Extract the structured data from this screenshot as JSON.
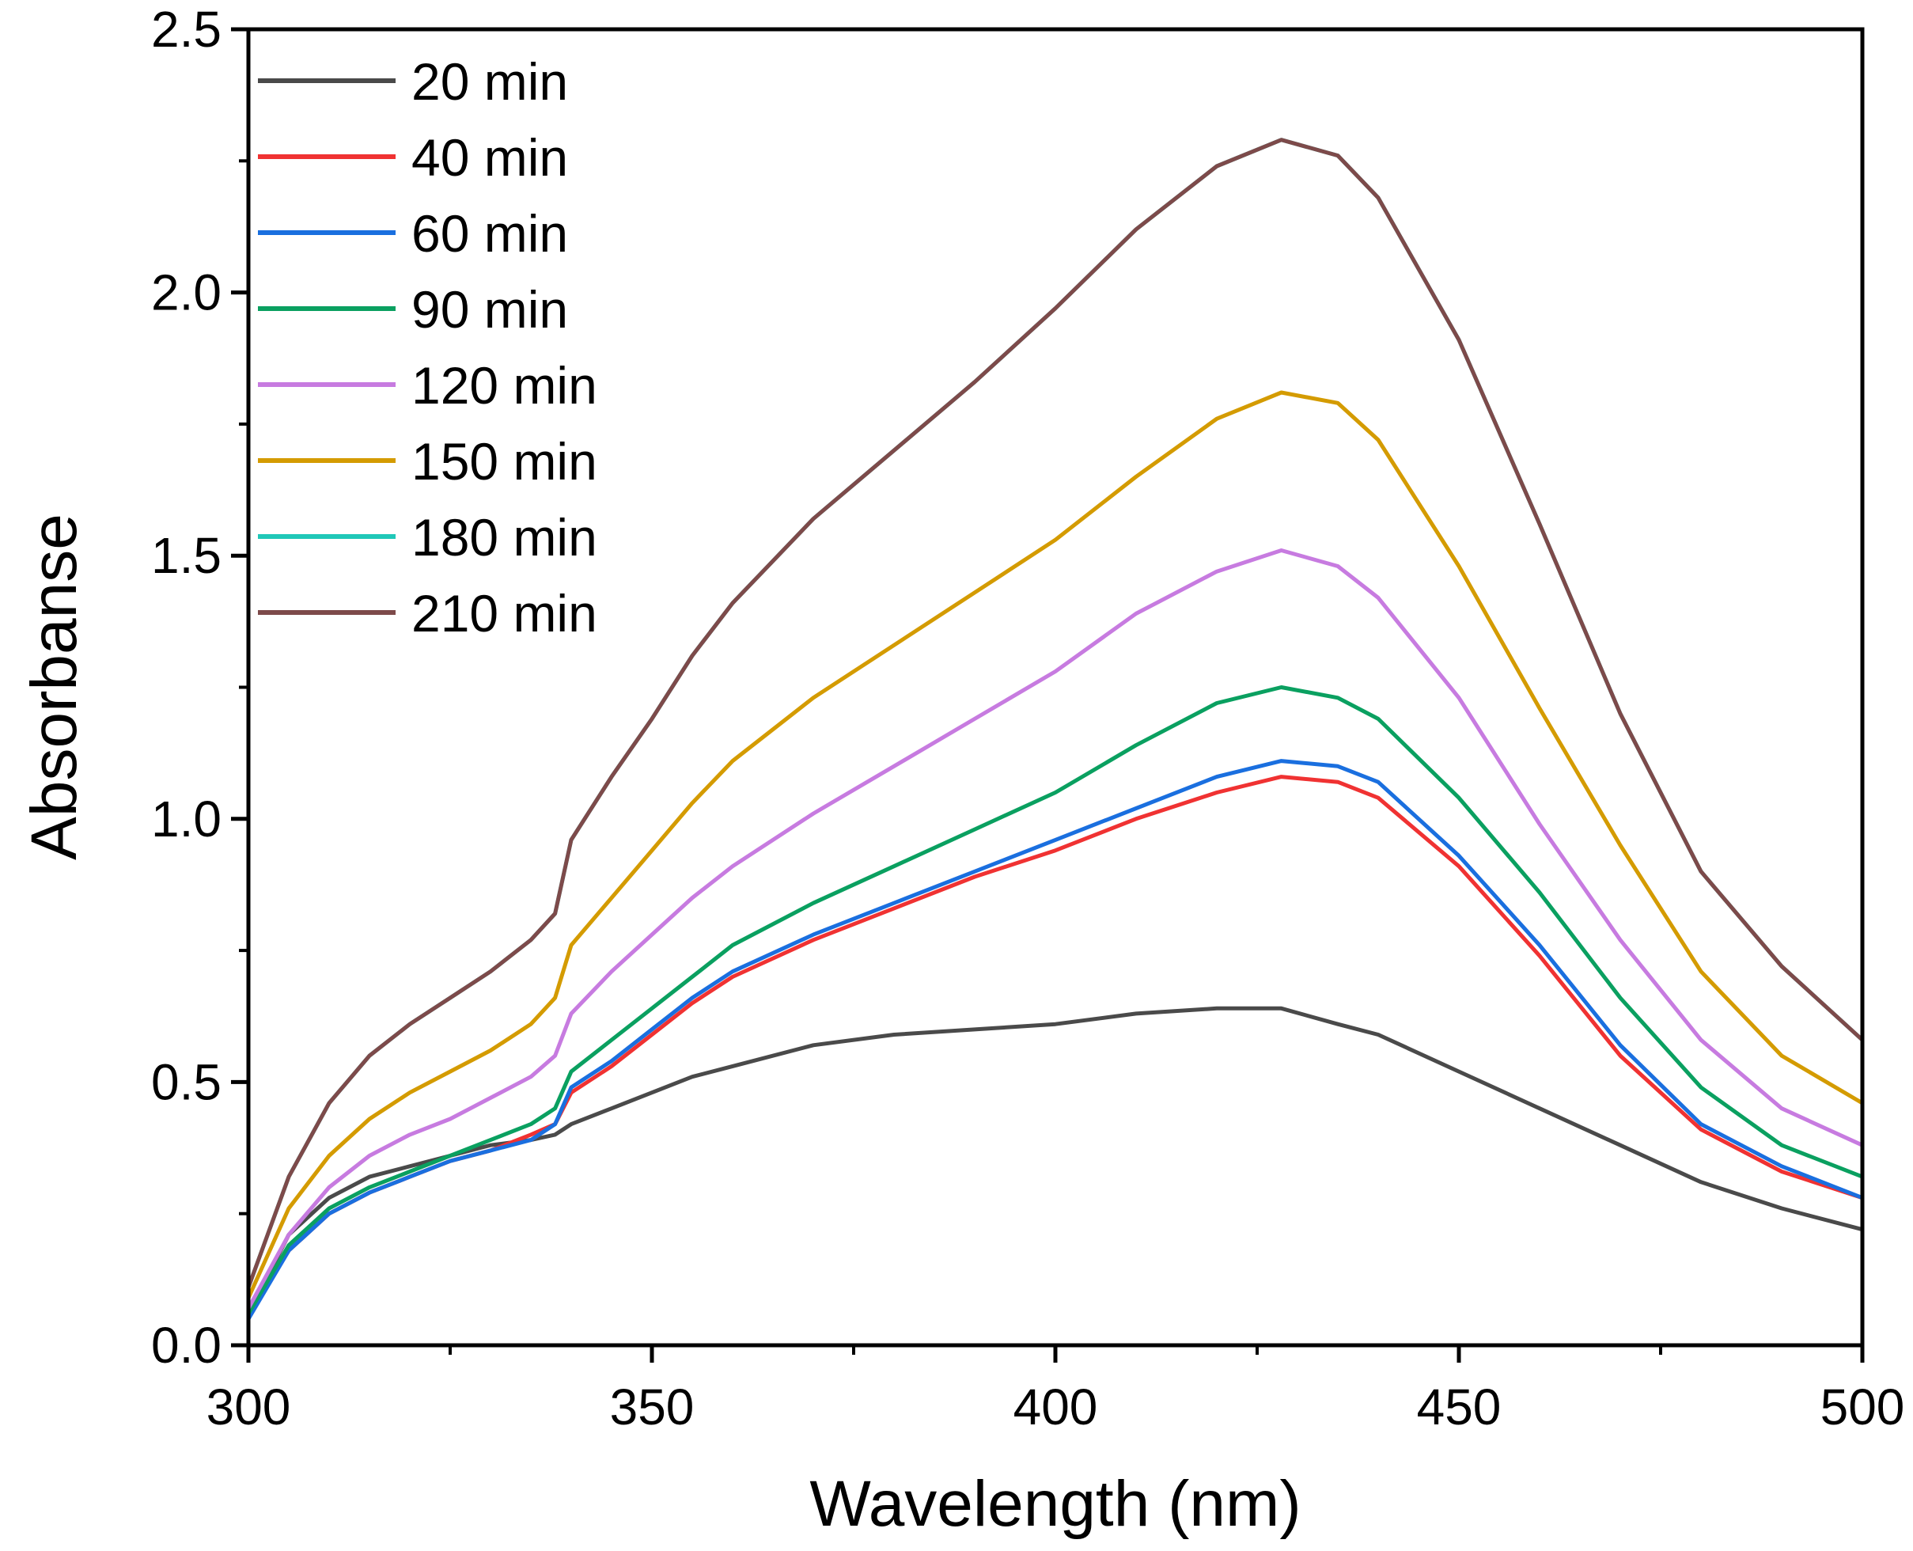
{
  "chart_data": {
    "type": "line",
    "title": "",
    "xlabel": "Wavelength (nm)",
    "ylabel": "Absorbanse",
    "xlim": [
      300,
      500
    ],
    "ylim": [
      0,
      2.5
    ],
    "xticks": [
      "300",
      "350",
      "400",
      "450",
      "500"
    ],
    "yticks": [
      "0.0",
      "0.5",
      "1.0",
      "1.5",
      "2.0",
      "2.5"
    ],
    "xtick_values": [
      300,
      350,
      400,
      450,
      500
    ],
    "ytick_values": [
      0,
      0.5,
      1.0,
      1.5,
      2.0,
      2.5
    ],
    "x": [
      300,
      305,
      310,
      315,
      320,
      325,
      330,
      335,
      338,
      340,
      345,
      350,
      355,
      360,
      370,
      380,
      390,
      400,
      410,
      420,
      428,
      435,
      440,
      450,
      460,
      470,
      480,
      490,
      500
    ],
    "legend_position": "top-left",
    "series": [
      {
        "name": "20 min",
        "color": "#4a4a4a",
        "values": [
          0.06,
          0.21,
          0.28,
          0.32,
          0.34,
          0.36,
          0.38,
          0.39,
          0.4,
          0.42,
          0.45,
          0.48,
          0.51,
          0.53,
          0.57,
          0.59,
          0.6,
          0.61,
          0.63,
          0.64,
          0.64,
          0.61,
          0.59,
          0.52,
          0.45,
          0.38,
          0.31,
          0.26,
          0.22
        ]
      },
      {
        "name": "40 min",
        "color": "#f03232",
        "values": [
          0.06,
          0.18,
          0.25,
          0.29,
          0.32,
          0.35,
          0.37,
          0.4,
          0.42,
          0.48,
          0.53,
          0.59,
          0.65,
          0.7,
          0.77,
          0.83,
          0.89,
          0.94,
          1.0,
          1.05,
          1.08,
          1.07,
          1.04,
          0.91,
          0.74,
          0.55,
          0.41,
          0.33,
          0.28
        ]
      },
      {
        "name": "60 min",
        "color": "#1a6fdf",
        "values": [
          0.05,
          0.18,
          0.25,
          0.29,
          0.32,
          0.35,
          0.37,
          0.39,
          0.42,
          0.49,
          0.54,
          0.6,
          0.66,
          0.71,
          0.78,
          0.84,
          0.9,
          0.96,
          1.02,
          1.08,
          1.11,
          1.1,
          1.07,
          0.93,
          0.76,
          0.57,
          0.42,
          0.34,
          0.28
        ]
      },
      {
        "name": "90 min",
        "color": "#0aa060",
        "values": [
          0.06,
          0.19,
          0.26,
          0.3,
          0.33,
          0.36,
          0.39,
          0.42,
          0.45,
          0.52,
          0.58,
          0.64,
          0.7,
          0.76,
          0.84,
          0.91,
          0.98,
          1.05,
          1.14,
          1.22,
          1.25,
          1.23,
          1.19,
          1.04,
          0.86,
          0.66,
          0.49,
          0.38,
          0.32
        ]
      },
      {
        "name": "120 min",
        "color": "#c77be0",
        "values": [
          0.07,
          0.21,
          0.3,
          0.36,
          0.4,
          0.43,
          0.47,
          0.51,
          0.55,
          0.63,
          0.71,
          0.78,
          0.85,
          0.91,
          1.01,
          1.1,
          1.19,
          1.28,
          1.39,
          1.47,
          1.51,
          1.48,
          1.42,
          1.23,
          0.99,
          0.77,
          0.58,
          0.45,
          0.38
        ]
      },
      {
        "name": "150 min",
        "color": "#d49b00",
        "values": [
          0.09,
          0.26,
          0.36,
          0.43,
          0.48,
          0.52,
          0.56,
          0.61,
          0.66,
          0.76,
          0.85,
          0.94,
          1.03,
          1.11,
          1.23,
          1.33,
          1.43,
          1.53,
          1.65,
          1.76,
          1.81,
          1.79,
          1.72,
          1.48,
          1.21,
          0.95,
          0.71,
          0.55,
          0.46
        ]
      },
      {
        "name": "180 min",
        "color": "#20c8b8",
        "values": [
          0.11,
          0.32,
          0.46,
          0.55,
          0.61,
          0.66,
          0.71,
          0.77,
          0.82,
          0.96,
          1.08,
          1.19,
          1.31,
          1.41,
          1.57,
          1.7,
          1.83,
          1.97,
          2.12,
          2.24,
          2.29,
          2.26,
          2.18,
          1.91,
          1.56,
          1.2,
          0.9,
          0.72,
          0.58
        ]
      },
      {
        "name": "210 min",
        "color": "#7d4a4a",
        "values": [
          0.11,
          0.32,
          0.46,
          0.55,
          0.61,
          0.66,
          0.71,
          0.77,
          0.82,
          0.96,
          1.08,
          1.19,
          1.31,
          1.41,
          1.57,
          1.7,
          1.83,
          1.97,
          2.12,
          2.24,
          2.29,
          2.26,
          2.18,
          1.91,
          1.56,
          1.2,
          0.9,
          0.72,
          0.58
        ]
      }
    ]
  }
}
